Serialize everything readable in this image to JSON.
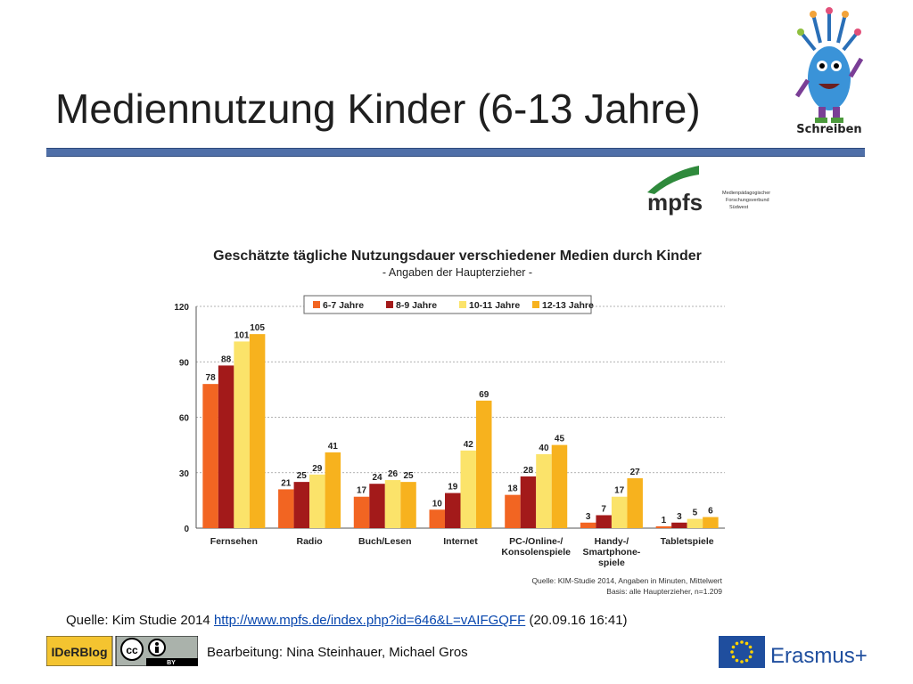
{
  "slide": {
    "title": "Mediennutzung Kinder (6-13 Jahre)",
    "mascot_label": "Schreiben",
    "source_prefix": "Quelle: Kim Studie 2014 ",
    "source_link": "http://www.mpfs.de/index.php?id=646&L=vAIFGQFF",
    "source_suffix": " (20.09.16 16:41)",
    "credit": "Bearbeitung: Nina Steinhauer, Michael Gros"
  },
  "logos": {
    "mpfs": {
      "name": "mpfs",
      "subtitle_lines": [
        "Medienpädagogischer",
        "Forschungsverbund",
        "Südwest"
      ]
    },
    "iderblog": {
      "name": "IDeRBlog",
      "cc": "cc",
      "by": "BY"
    },
    "erasmus": {
      "name": "Erasmus+"
    }
  },
  "chart_data": {
    "type": "bar",
    "title": "Geschätzte tägliche Nutzungsdauer verschiedener Medien durch Kinder",
    "subtitle": "- Angaben der Haupterzieher -",
    "categories": [
      "Fernsehen",
      "Radio",
      "Buch/Lesen",
      "Internet",
      "PC-/Online-/ Konsolenspiele",
      "Handy-/ Smartphone- spiele",
      "Tabletspiele"
    ],
    "series": [
      {
        "name": "6-7 Jahre",
        "color": "#f26522",
        "values": [
          78,
          21,
          17,
          10,
          18,
          3,
          1
        ]
      },
      {
        "name": "8-9 Jahre",
        "color": "#a31a1a",
        "values": [
          88,
          25,
          24,
          19,
          28,
          7,
          3
        ]
      },
      {
        "name": "10-11 Jahre",
        "color": "#fbe36a",
        "values": [
          101,
          29,
          26,
          42,
          40,
          17,
          5
        ]
      },
      {
        "name": "12-13 Jahre",
        "color": "#f7b21e",
        "values": [
          105,
          41,
          25,
          69,
          45,
          27,
          6
        ]
      }
    ],
    "yticks": [
      0,
      30,
      60,
      90,
      120
    ],
    "ylim": [
      0,
      120
    ],
    "grid": true,
    "legend": "top",
    "note_lines": [
      "Quelle: KIM-Studie 2014, Angaben in Minuten, Mittelwert",
      "Basis: alle Haupterzieher, n=1.209"
    ]
  }
}
